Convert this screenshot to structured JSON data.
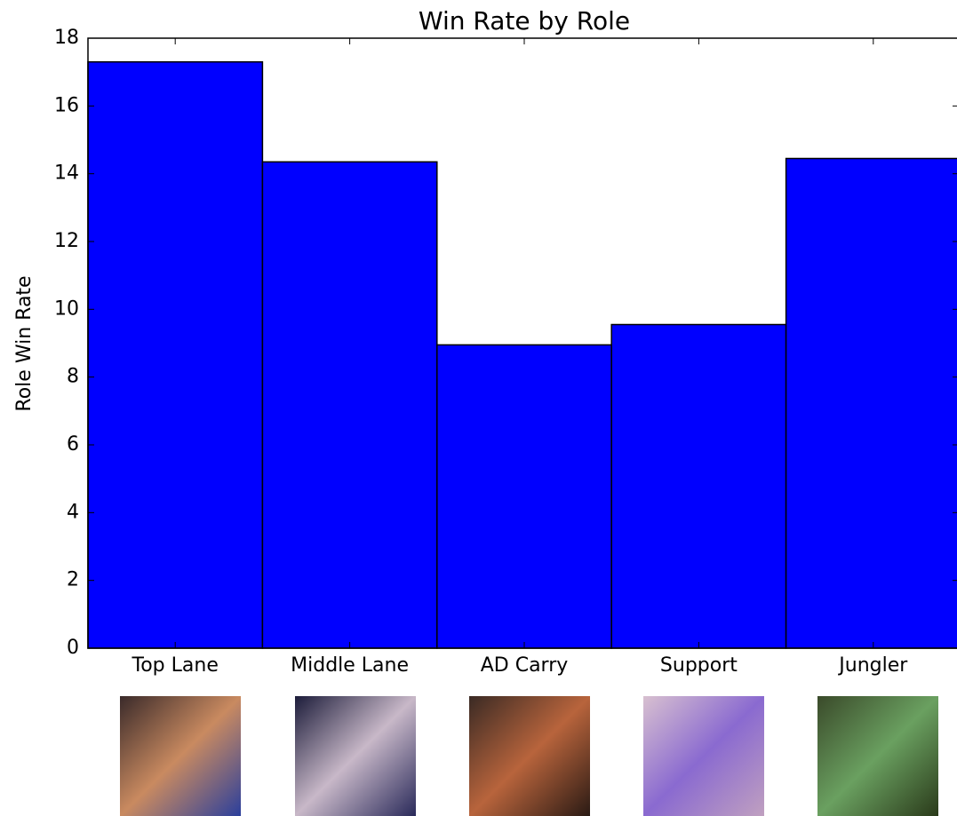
{
  "chart_data": {
    "type": "bar",
    "title": "Win Rate by Role",
    "y_label": "Role Win Rate",
    "categories": [
      "Top Lane",
      "Middle Lane",
      "AD Carry",
      "Support",
      "Jungler"
    ],
    "values": [
      17.3,
      14.35,
      8.95,
      9.55,
      14.45
    ],
    "color": "#0000ff",
    "ylim": [
      0,
      18
    ],
    "yticks": [
      0,
      2,
      4,
      6,
      8,
      10,
      12,
      14,
      16,
      18
    ],
    "grid": false
  }
}
